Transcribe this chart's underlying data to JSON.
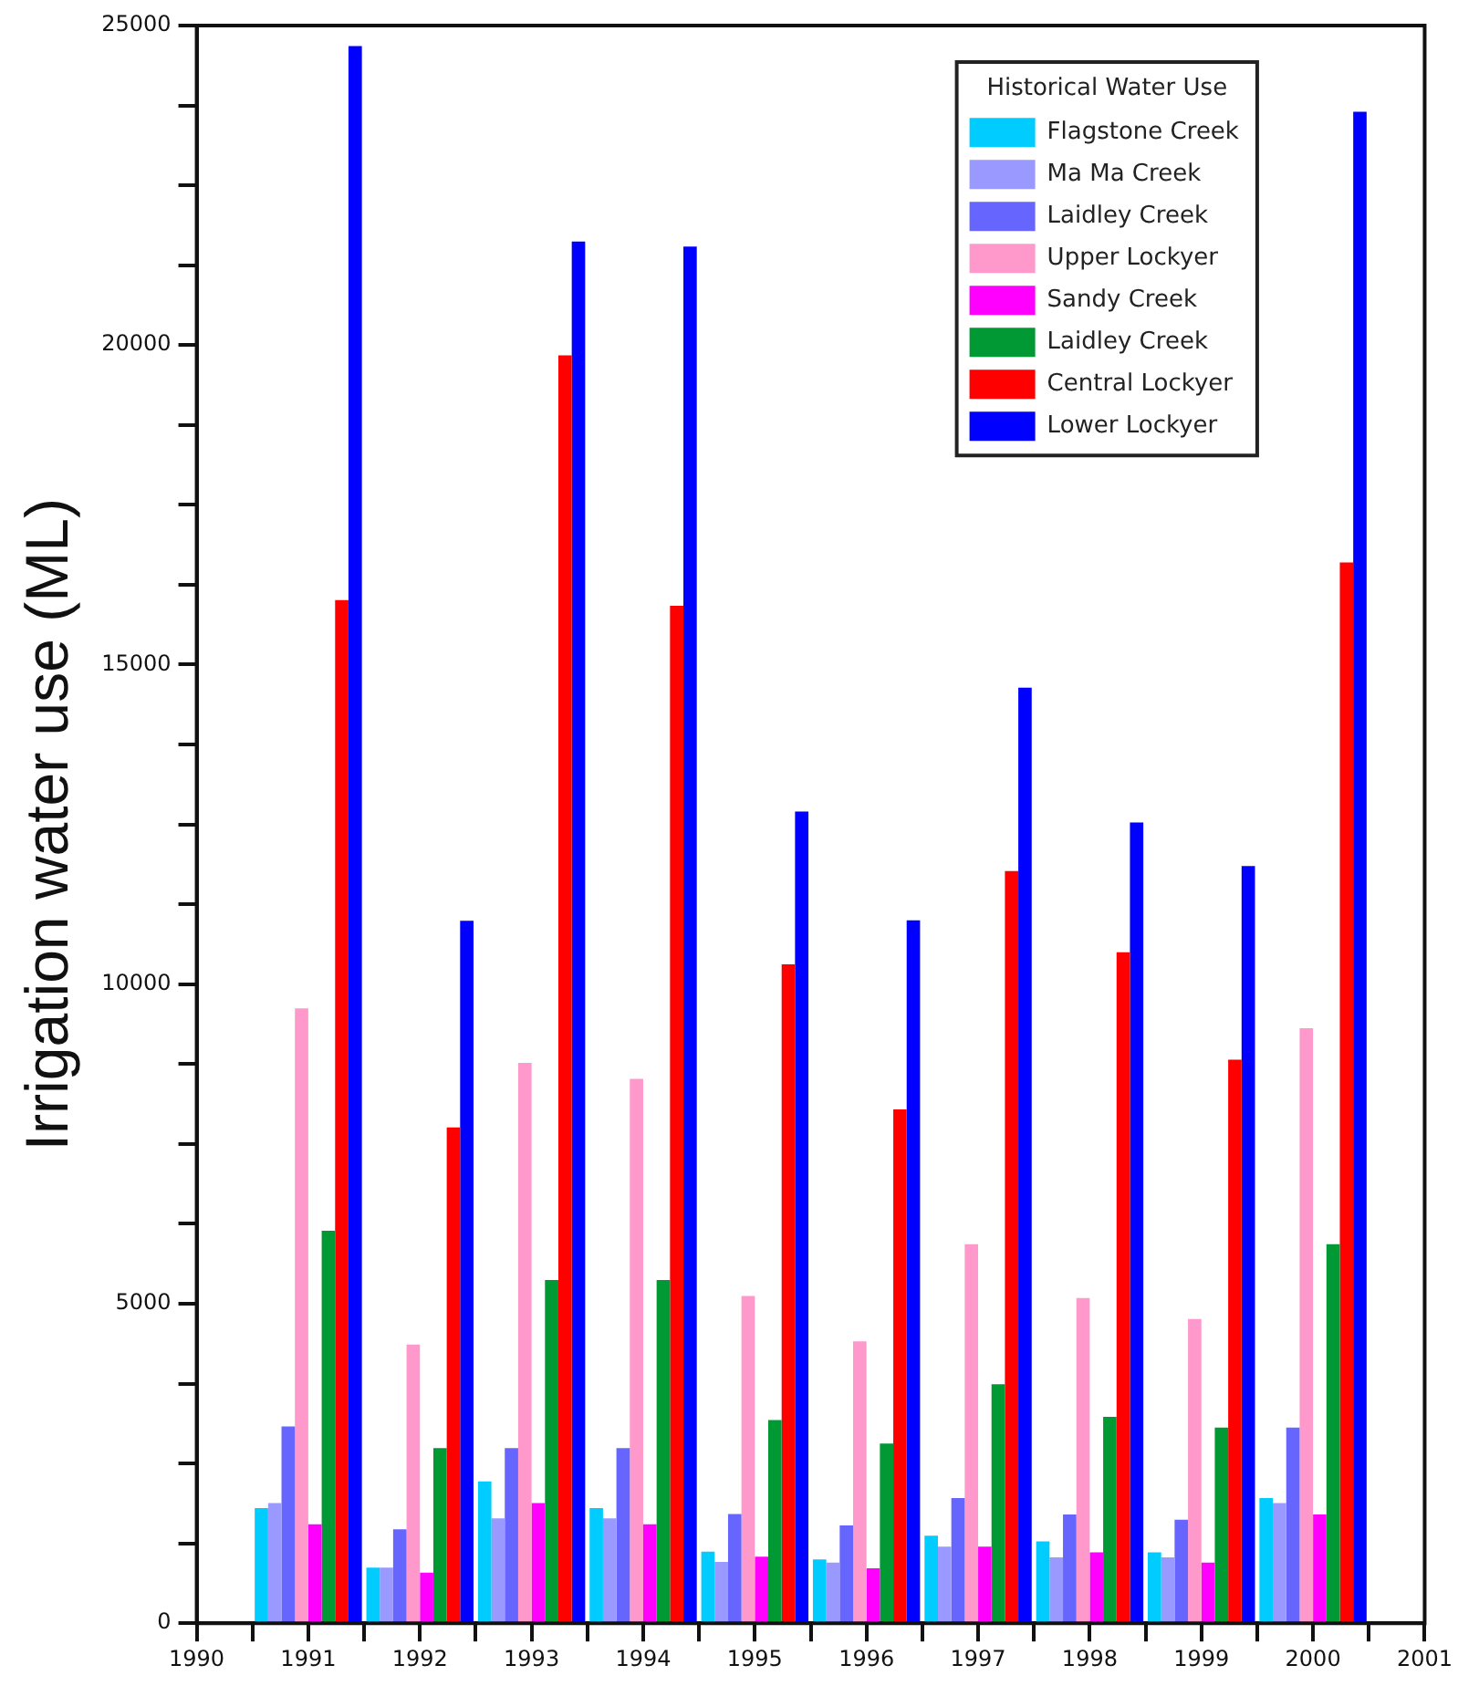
{
  "chart_data": {
    "type": "bar",
    "ylabel": "Irrigation water use (ML)",
    "legend_title": "Historical Water Use",
    "x": [
      1991,
      1992,
      1993,
      1994,
      1995,
      1996,
      1997,
      1998,
      1999,
      2000
    ],
    "series": [
      {
        "name": "Flagstone Creek",
        "color": "#00ccff",
        "values": [
          1800,
          870,
          2220,
          1800,
          1120,
          1000,
          1370,
          1280,
          1110,
          1960
        ]
      },
      {
        "name": "Ma Ma Creek",
        "color": "#9999ff",
        "values": [
          1880,
          870,
          1640,
          1640,
          960,
          950,
          1200,
          1030,
          1030,
          1880
        ]
      },
      {
        "name": "Laidley Creek",
        "color": "#6666ff",
        "values": [
          3080,
          1470,
          2740,
          2740,
          1710,
          1530,
          1960,
          1700,
          1620,
          3060
        ]
      },
      {
        "name": "Upper Lockyer",
        "color": "#ff99cc",
        "values": [
          9620,
          4360,
          8770,
          8520,
          5120,
          4410,
          5930,
          5090,
          4760,
          9310
        ]
      },
      {
        "name": "Sandy Creek",
        "color": "#ff00ff",
        "values": [
          1550,
          790,
          1880,
          1550,
          1040,
          860,
          1200,
          1110,
          950,
          1700
        ]
      },
      {
        "name": "Laidley Creek",
        "color": "#009933",
        "values": [
          6140,
          2740,
          5370,
          5370,
          3180,
          2810,
          3740,
          3230,
          3060,
          5930
        ]
      },
      {
        "name": "Central Lockyer",
        "color": "#ff0000",
        "values": [
          16010,
          7760,
          19840,
          15920,
          10310,
          8040,
          11770,
          10500,
          8820,
          16600
        ]
      },
      {
        "name": "Lower Lockyer",
        "color": "#0000ff",
        "values": [
          24680,
          10990,
          21620,
          21540,
          12700,
          11000,
          14640,
          12530,
          11850,
          23650
        ]
      }
    ],
    "xlim": [
      1990,
      2001
    ],
    "xticks": [
      1990,
      {
        "value": 1990.5,
        "label": null
      },
      1991,
      {
        "value": 1991.5,
        "label": null
      },
      1992,
      {
        "value": 1992.5,
        "label": null
      },
      1993,
      {
        "value": 1993.5,
        "label": null
      },
      1994,
      {
        "value": 1994.5,
        "label": null
      },
      1995,
      {
        "value": 1995.5,
        "label": null
      },
      1996,
      {
        "value": 1996.5,
        "label": null
      },
      1997,
      {
        "value": 1997.5,
        "label": null
      },
      1998,
      {
        "value": 1998.5,
        "label": null
      },
      1999,
      {
        "value": 1999.5,
        "label": null
      },
      2000,
      {
        "value": 2000.5,
        "label": null
      },
      2001
    ],
    "ylim": [
      0,
      25000
    ],
    "yticks": [
      0,
      {
        "value": 1250,
        "label": null
      },
      {
        "value": 2500,
        "label": null
      },
      {
        "value": 3750,
        "label": null
      },
      5000,
      {
        "value": 6250,
        "label": null
      },
      {
        "value": 7500,
        "label": null
      },
      {
        "value": 8750,
        "label": null
      },
      10000,
      {
        "value": 11250,
        "label": null
      },
      {
        "value": 12500,
        "label": null
      },
      {
        "value": 13750,
        "label": null
      },
      15000,
      {
        "value": 16250,
        "label": null
      },
      {
        "value": 17500,
        "label": null
      },
      {
        "value": 18750,
        "label": null
      },
      20000,
      {
        "value": 21250,
        "label": null
      },
      {
        "value": 22500,
        "label": null
      },
      {
        "value": 23750,
        "label": null
      },
      25000
    ],
    "grid": false,
    "legend": "top right"
  }
}
